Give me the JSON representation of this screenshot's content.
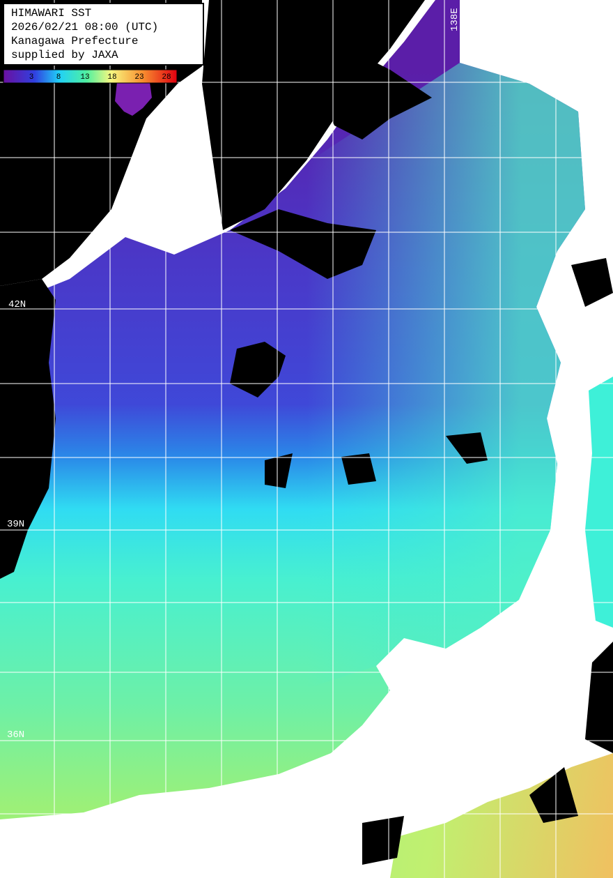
{
  "header": {
    "lines": [
      "HIMAWARI SST",
      "2026/02/21 08:00 (UTC)",
      "Kanagawa Prefecture",
      "supplied by JAXA"
    ]
  },
  "colorbar": {
    "ticks": [
      3,
      8,
      13,
      18,
      23,
      28
    ]
  },
  "grid_labels": {
    "latitudes": [
      "42N",
      "39N",
      "36N"
    ],
    "longitudes": [
      "138E"
    ]
  }
}
